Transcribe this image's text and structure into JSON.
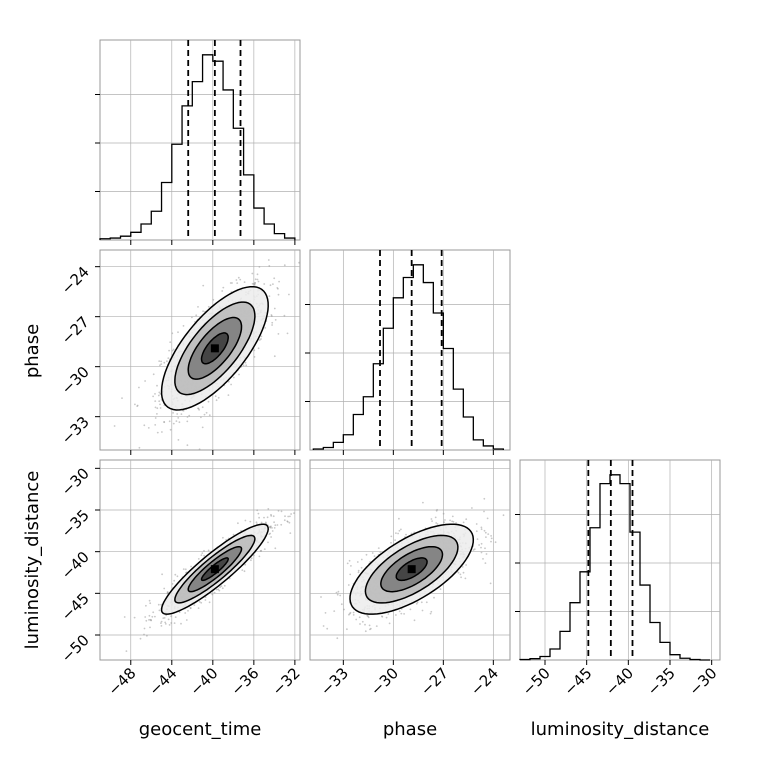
{
  "chart_data": {
    "type": "corner",
    "parameters": [
      "geocent_time",
      "phase",
      "luminosity_distance"
    ],
    "labels": {
      "geocent_time": "geocent_time",
      "phase": "phase",
      "luminosity_distance": "luminosity_distance"
    },
    "ranges": {
      "geocent_time": [
        -51,
        -31.5
      ],
      "phase": [
        -35,
        -23
      ],
      "luminosity_distance": [
        -53,
        -29
      ]
    },
    "ticks": {
      "geocent_time": [
        -48,
        -44,
        -40,
        -36,
        -32
      ],
      "phase": [
        -33,
        -30,
        -27,
        -24
      ],
      "luminosity_distance": [
        -50,
        -45,
        -40,
        -35,
        -30
      ]
    },
    "tick_labels": {
      "geocent_time": [
        "−48",
        "−44",
        "−40",
        "−36",
        "−32"
      ],
      "phase": [
        "−33",
        "−30",
        "−27",
        "−24"
      ],
      "luminosity_distance": [
        "−50",
        "−45",
        "−40",
        "−35",
        "−30"
      ]
    },
    "quantiles": {
      "geocent_time": [
        -42.4,
        -39.8,
        -37.3
      ],
      "phase": [
        -30.8,
        -28.9,
        -27.1
      ],
      "luminosity_distance": [
        -44.8,
        -42.1,
        -39.5
      ]
    },
    "histograms": {
      "geocent_time": {
        "edges": [
          -51.0,
          -50.0,
          -49.0,
          -48.0,
          -47.0,
          -46.0,
          -45.0,
          -44.0,
          -43.0,
          -42.0,
          -41.0,
          -40.0,
          -39.0,
          -38.0,
          -37.0,
          -36.0,
          -35.0,
          -34.0,
          -33.0,
          -32.0
        ],
        "counts": [
          2,
          3,
          6,
          12,
          25,
          45,
          90,
          150,
          210,
          248,
          290,
          280,
          235,
          175,
          102,
          50,
          25,
          10,
          3
        ]
      },
      "phase": {
        "edges": [
          -34.8,
          -34.2,
          -33.6,
          -33.0,
          -32.4,
          -31.8,
          -31.2,
          -30.6,
          -30.0,
          -29.4,
          -28.8,
          -28.2,
          -27.6,
          -27.0,
          -26.4,
          -25.8,
          -25.2,
          -24.6,
          -24.0,
          -23.4
        ],
        "counts": [
          2,
          5,
          15,
          30,
          70,
          105,
          170,
          240,
          300,
          340,
          365,
          330,
          270,
          200,
          120,
          65,
          20,
          8,
          2
        ]
      },
      "luminosity_distance": {
        "edges": [
          -53.0,
          -51.8,
          -50.6,
          -49.4,
          -48.2,
          -47.0,
          -45.8,
          -44.6,
          -43.4,
          -42.2,
          -41.0,
          -39.8,
          -38.6,
          -37.4,
          -36.2,
          -35.0,
          -33.8,
          -32.6,
          -31.4,
          -30.2
        ],
        "counts": [
          1,
          3,
          8,
          25,
          65,
          130,
          200,
          300,
          400,
          420,
          400,
          290,
          170,
          85,
          40,
          12,
          4,
          1,
          0
        ]
      }
    },
    "pairs": [
      {
        "x": "geocent_time",
        "y": "phase",
        "center": [
          -39.8,
          -28.9
        ],
        "sigma": [
          2.6,
          1.85
        ],
        "rho": 0.7,
        "contours": [
          {
            "level": "0.5 sigma",
            "shade": "#3a3a3a",
            "scale": 0.5
          },
          {
            "level": "1 sigma",
            "shade": "#7a7a7a",
            "scale": 1.0
          },
          {
            "level": "1.5 sigma",
            "shade": "#b8b8b8",
            "scale": 1.5
          },
          {
            "level": "2 sigma",
            "shade": "#ececec",
            "scale": 2.0
          }
        ]
      },
      {
        "x": "geocent_time",
        "y": "luminosity_distance",
        "center": [
          -39.8,
          -42.1
        ],
        "sigma": [
          2.6,
          2.7
        ],
        "rho": 0.9,
        "contours": [
          {
            "level": "0.5 sigma",
            "shade": "#3a3a3a",
            "scale": 0.5
          },
          {
            "level": "1 sigma",
            "shade": "#7a7a7a",
            "scale": 1.0
          },
          {
            "level": "1.5 sigma",
            "shade": "#b8b8b8",
            "scale": 1.5
          },
          {
            "level": "2 sigma",
            "shade": "#ececec",
            "scale": 2.0
          }
        ]
      },
      {
        "x": "phase",
        "y": "luminosity_distance",
        "center": [
          -28.9,
          -42.1
        ],
        "sigma": [
          1.85,
          2.7
        ],
        "rho": 0.65,
        "contours": [
          {
            "level": "0.5 sigma",
            "shade": "#3a3a3a",
            "scale": 0.5
          },
          {
            "level": "1 sigma",
            "shade": "#7a7a7a",
            "scale": 1.0
          },
          {
            "level": "1.5 sigma",
            "shade": "#b8b8b8",
            "scale": 1.5
          },
          {
            "level": "2 sigma",
            "shade": "#ececec",
            "scale": 2.0
          }
        ]
      }
    ],
    "grid": true,
    "colors": {
      "line": "#000000",
      "grid": "#b0b0b0",
      "scatter": "#9a9a9a",
      "frame": "#999999"
    }
  }
}
